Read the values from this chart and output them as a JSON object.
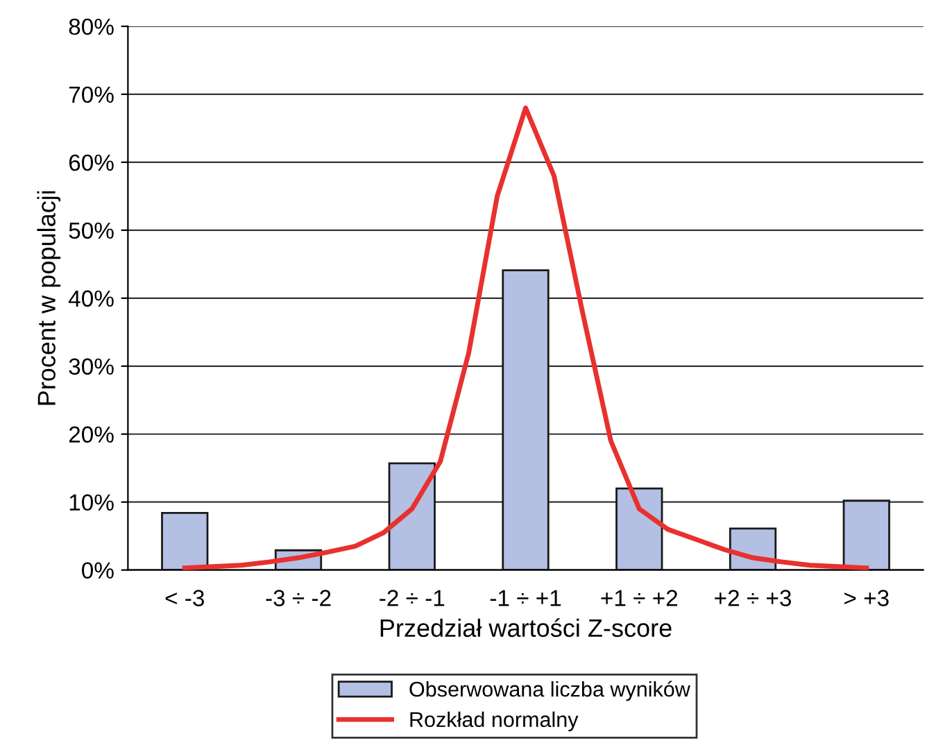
{
  "chart_data": {
    "type": "bar",
    "xlabel": "Przedział wartości Z-score",
    "ylabel": "Procent w populacji",
    "categories": [
      "< -3",
      null,
      null,
      null,
      "-3 ÷ -2",
      null,
      null,
      null,
      "-2 ÷ -1",
      null,
      null,
      null,
      "-1 ÷ +1",
      null,
      null,
      null,
      "+1 ÷ +2",
      null,
      null,
      null,
      "+2 ÷ +3",
      null,
      null,
      null,
      "> +3"
    ],
    "series": [
      {
        "name": "Obserwowana liczba wyników",
        "color": "#b3bfe3",
        "values": [
          8.4,
          null,
          null,
          null,
          2.9,
          null,
          null,
          null,
          15.7,
          null,
          null,
          null,
          44.1,
          null,
          null,
          null,
          12.0,
          null,
          null,
          null,
          6.1,
          null,
          null,
          null,
          10.2
        ]
      },
      {
        "name": "Rozkład normalny",
        "type": "line",
        "color": "#e8312f",
        "values": [
          0.3,
          0.5,
          0.7,
          1.2,
          1.8,
          2.6,
          3.5,
          5.5,
          9,
          16,
          32,
          55,
          68,
          58,
          38,
          19,
          9,
          6,
          4.5,
          3,
          1.8,
          1.2,
          0.7,
          0.5,
          0.3
        ]
      }
    ],
    "ylim": [
      0,
      80
    ],
    "yticks": [
      {
        "value": 0,
        "label": "0%"
      },
      {
        "value": 10,
        "label": "10%"
      },
      {
        "value": 20,
        "label": "20%"
      },
      {
        "value": 30,
        "label": "30%"
      },
      {
        "value": 40,
        "label": "40%"
      },
      {
        "value": 50,
        "label": "50%"
      },
      {
        "value": 60,
        "label": "60%"
      },
      {
        "value": 70,
        "label": "70%"
      },
      {
        "value": 80,
        "label": "80%"
      }
    ],
    "grid": "y",
    "legend": "bottom"
  }
}
